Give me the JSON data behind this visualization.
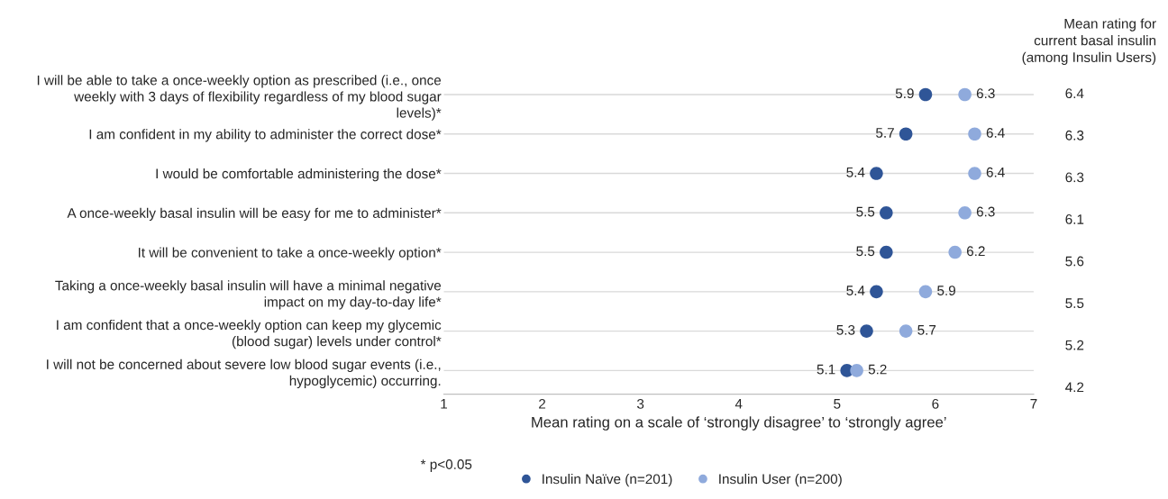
{
  "chart_data": {
    "type": "scatter",
    "orientation": "horizontal",
    "categories": [
      "I will be able to take a once-weekly option as prescribed (i.e., once\nweekly with 3 days of flexibility regardless of my blood sugar\nlevels)*",
      "I am confident in my ability to administer the correct dose*",
      "I would be comfortable administering the dose*",
      "A once-weekly basal insulin will be easy for me to administer*",
      "It will be convenient to take a once-weekly option*",
      "Taking a once-weekly basal insulin will have a minimal negative\nimpact on my day-to-day life*",
      "I am confident that a once-weekly option can keep my glycemic\n(blood sugar) levels under control*",
      "I will not be concerned about severe low blood sugar events (i.e.,\nhypoglycemic) occurring."
    ],
    "series": [
      {
        "name": "Insulin Naïve (n=201)",
        "color": "#2f5597",
        "values": [
          5.9,
          5.7,
          5.4,
          5.5,
          5.5,
          5.4,
          5.3,
          5.1
        ]
      },
      {
        "name": "Insulin User (n=200)",
        "color": "#8faadc",
        "values": [
          6.3,
          6.4,
          6.4,
          6.3,
          6.2,
          5.9,
          5.7,
          5.2
        ]
      }
    ],
    "xlabel": "Mean rating on a scale of ‘strongly disagree’ to ‘strongly agree’",
    "xlim": [
      1,
      7
    ],
    "xticks": [
      1,
      2,
      3,
      4,
      5,
      6,
      7
    ],
    "grid": "y",
    "legend": "bottom",
    "marker": "circle",
    "data_labels": true,
    "annotations": [
      "* p<0.05",
      "Mean rating for\ncurrent basal insulin\n(among Insulin Users)",
      "6.4",
      "6.3",
      "6.3",
      "6.1",
      "5.6",
      "5.5",
      "5.2",
      "4.2"
    ]
  }
}
